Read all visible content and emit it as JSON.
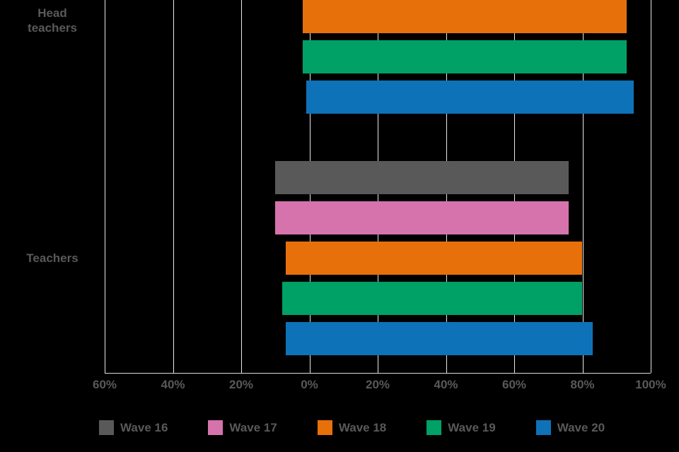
{
  "chart_data": {
    "type": "bar",
    "orientation": "horizontal-diverging",
    "title": "",
    "xlabel": "",
    "ylabel": "",
    "xlim": [
      -60,
      100
    ],
    "grid": true,
    "legend_position": "bottom",
    "categories": [
      "Head teachers",
      "Teachers"
    ],
    "axis_ticks": [
      {
        "value": -60,
        "label": "60%"
      },
      {
        "value": -40,
        "label": "40%"
      },
      {
        "value": -20,
        "label": "20%"
      },
      {
        "value": 0,
        "label": "0%"
      },
      {
        "value": 20,
        "label": "20%"
      },
      {
        "value": 40,
        "label": "40%"
      },
      {
        "value": 60,
        "label": "60%"
      },
      {
        "value": 80,
        "label": "80%"
      },
      {
        "value": 100,
        "label": "100%"
      }
    ],
    "series": [
      {
        "name": "Wave 16",
        "color": "#595959",
        "values": [
          null,
          [
            -10,
            76
          ]
        ]
      },
      {
        "name": "Wave 17",
        "color": "#d673ac",
        "values": [
          null,
          [
            -10,
            76
          ]
        ]
      },
      {
        "name": "Wave 18",
        "color": "#e8700a",
        "values": [
          [
            -2,
            93
          ],
          [
            -7,
            80
          ]
        ]
      },
      {
        "name": "Wave 19",
        "color": "#00a166",
        "values": [
          [
            -2,
            93
          ],
          [
            -8,
            80
          ]
        ]
      },
      {
        "name": "Wave 20",
        "color": "#0e72b8",
        "values": [
          [
            -1,
            95
          ],
          [
            -7,
            83
          ]
        ]
      }
    ],
    "colors": {
      "grid": "#e8e8e8",
      "axis": "#d9d9d9",
      "text": "#595959",
      "background": "#000000"
    }
  }
}
